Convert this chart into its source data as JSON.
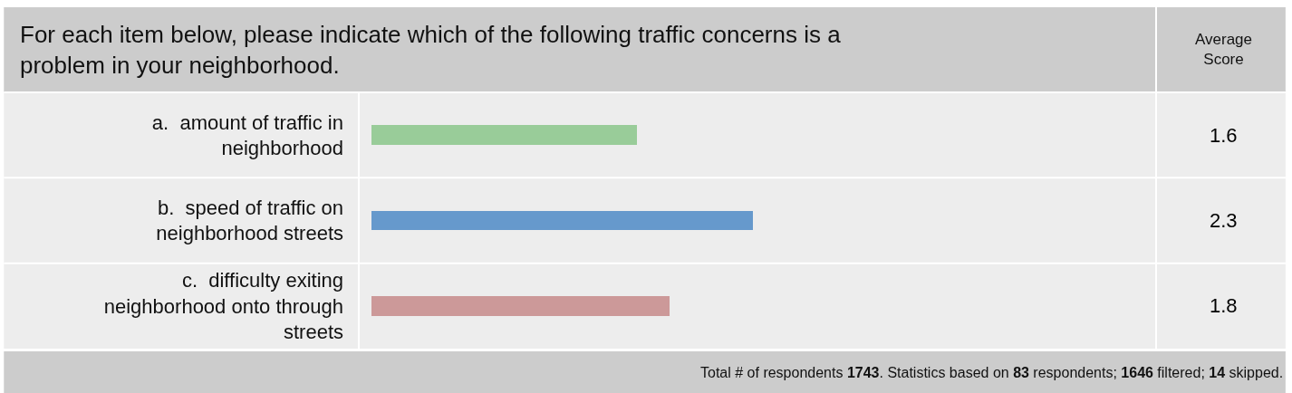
{
  "chart_data": {
    "type": "bar",
    "orientation": "horizontal",
    "title": "For each item below, please indicate which of the following traffic concerns is a problem in your neighborhood.",
    "categories": [
      "a.  amount of traffic in neighborhood",
      "b.  speed of traffic on neighborhood streets",
      "c.  difficulty exiting neighborhood onto through streets"
    ],
    "values": [
      1.6,
      2.3,
      1.8
    ],
    "colors": [
      "#99cc99",
      "#6699cc",
      "#cc9999"
    ],
    "data_labels": true,
    "grid": false,
    "legend": false,
    "annotations": [
      "Average Score",
      "Total # of respondents 1743. Statistics based on 83 respondents; 1646 filtered; 14 skipped."
    ]
  }
}
